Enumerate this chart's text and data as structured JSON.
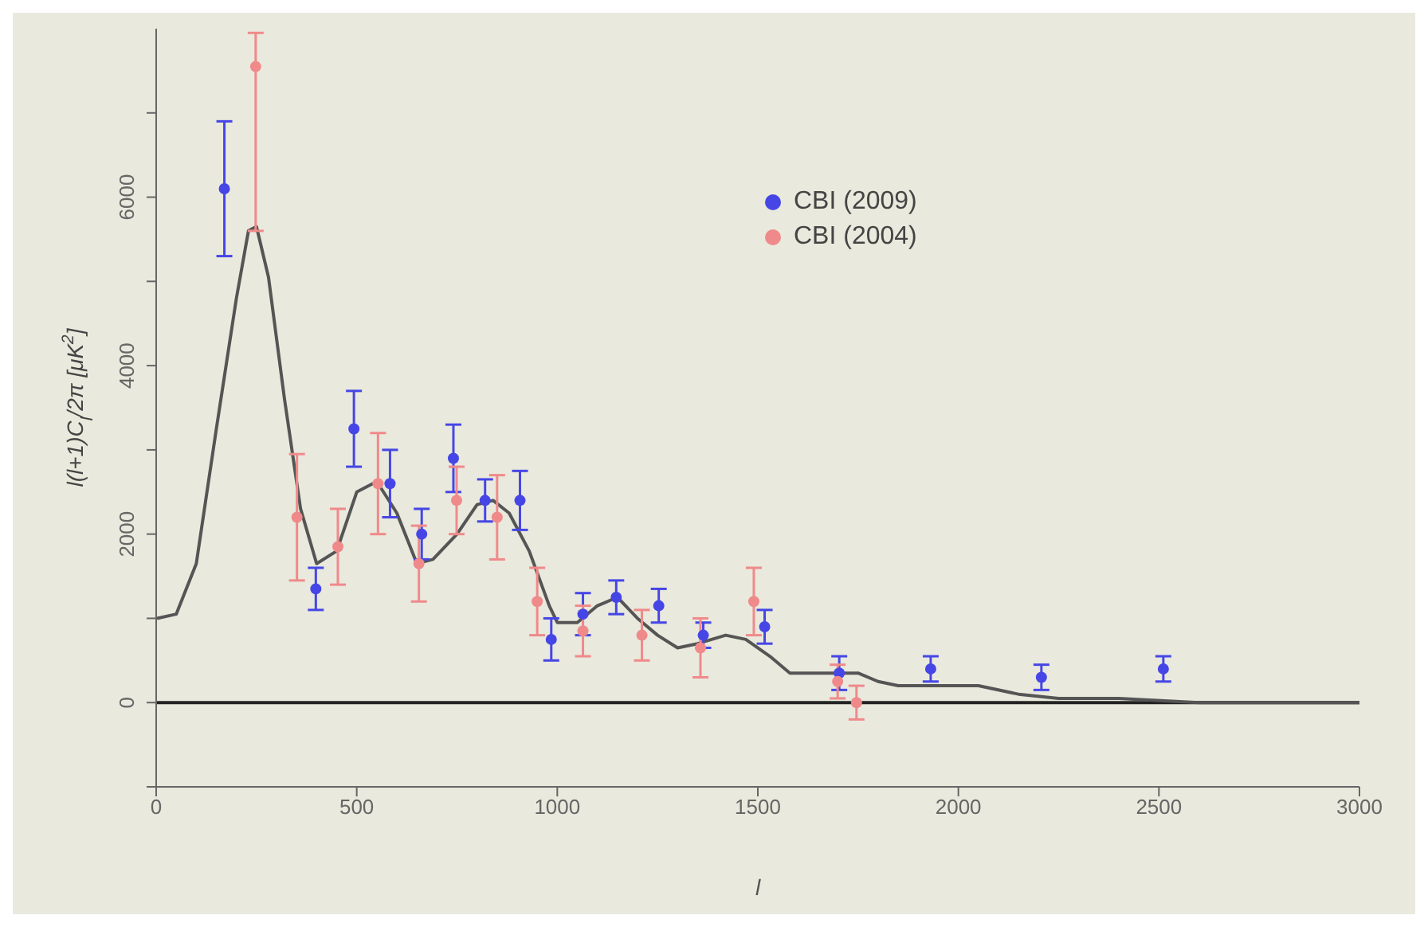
{
  "chart_data": {
    "type": "scatter",
    "xlabel": "l",
    "ylabel": "l(l+1)C$_{l}$/2π [μK$^{2}$]",
    "xlim": [
      0,
      3000
    ],
    "xticks": [
      0,
      500,
      1000,
      1500,
      2000,
      2500,
      3000
    ],
    "ylim": [
      -1000,
      8000
    ],
    "yticks": [
      {
        "value": -1000,
        "label": null
      },
      0,
      {
        "value": 1000,
        "label": null
      },
      2000,
      {
        "value": 3000,
        "label": null
      },
      4000,
      {
        "value": 5000,
        "label": null
      },
      6000,
      {
        "value": 7000,
        "label": null
      }
    ],
    "legend": "top",
    "marker": "circle",
    "ref_lines": [
      {
        "axis": "y",
        "value": 0,
        "color": "#222222"
      }
    ],
    "series": [
      {
        "type": "line",
        "marker": "none",
        "color": "#555555",
        "x": [
          2,
          50,
          100,
          150,
          200,
          230,
          250,
          280,
          320,
          360,
          400,
          450,
          500,
          540,
          560,
          600,
          650,
          690,
          750,
          800,
          840,
          880,
          930,
          980,
          1000,
          1050,
          1100,
          1150,
          1200,
          1250,
          1300,
          1350,
          1420,
          1470,
          1530,
          1580,
          1650,
          1750,
          1800,
          1850,
          1950,
          2050,
          2150,
          2250,
          2400,
          2600,
          2800,
          3000
        ],
        "values": [
          1000,
          1050,
          1650,
          3250,
          4800,
          5600,
          5650,
          5050,
          3600,
          2300,
          1650,
          1800,
          2500,
          2600,
          2550,
          2250,
          1650,
          1700,
          2000,
          2350,
          2400,
          2250,
          1800,
          1150,
          950,
          950,
          1150,
          1250,
          1000,
          800,
          650,
          700,
          800,
          750,
          550,
          350,
          350,
          350,
          250,
          200,
          200,
          200,
          100,
          50,
          50,
          0,
          0,
          0
        ]
      },
      {
        "name": "CBI (2009)",
        "color": "#4646e6",
        "x": [
          170,
          398,
          493,
          583,
          662,
          741,
          820,
          907,
          985,
          1064,
          1147,
          1253,
          1364,
          1517,
          1703,
          1931,
          2207,
          2511
        ],
        "values": [
          6100,
          1350,
          3250,
          2600,
          2000,
          2900,
          2400,
          2400,
          750,
          1050,
          1250,
          1150,
          800,
          900,
          350,
          400,
          300,
          400
        ],
        "errors": [
          800,
          250,
          450,
          400,
          300,
          400,
          250,
          350,
          250,
          250,
          200,
          200,
          150,
          200,
          200,
          150,
          150,
          150
        ]
      },
      {
        "name": "CBI (2004)",
        "color": "#f08a8a",
        "x": [
          248,
          351,
          453,
          553,
          655,
          749,
          850,
          950,
          1064,
          1211,
          1357,
          1490,
          1699,
          1746
        ],
        "values": [
          7550,
          2200,
          1850,
          2600,
          1650,
          2400,
          2200,
          1200,
          850,
          800,
          650,
          1200,
          250,
          0
        ],
        "errors": [
          [
            5600,
            7950
          ],
          750,
          450,
          600,
          450,
          400,
          500,
          400,
          300,
          300,
          350,
          400,
          200,
          200
        ]
      }
    ]
  }
}
